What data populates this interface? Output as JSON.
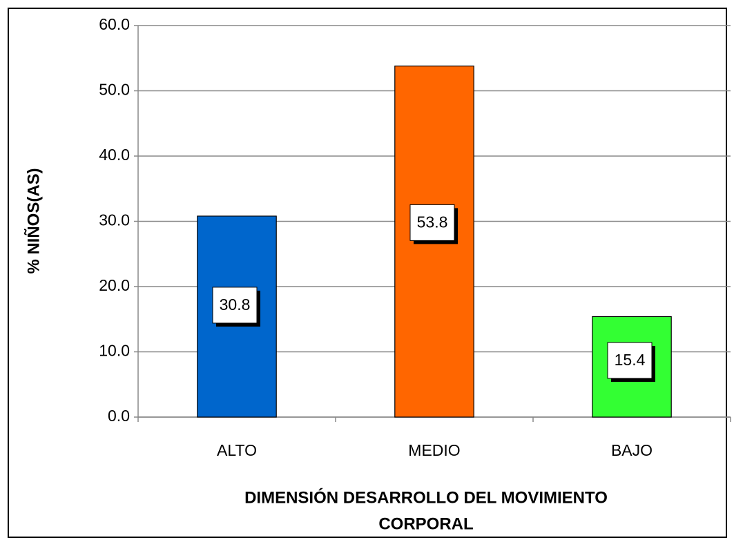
{
  "chart_data": {
    "type": "bar",
    "categories": [
      "ALTO",
      "MEDIO",
      "BAJO"
    ],
    "values": [
      30.8,
      53.8,
      15.4
    ],
    "colors": [
      "#0066cc",
      "#ff6600",
      "#33ff33"
    ],
    "ylim": [
      0,
      60
    ],
    "yticks": [
      {
        "value": 0,
        "label": "0.0"
      },
      {
        "value": 10,
        "label": "10.0"
      },
      {
        "value": 20,
        "label": "20.0"
      },
      {
        "value": 30,
        "label": "30.0"
      },
      {
        "value": 40,
        "label": "40.0"
      },
      {
        "value": 50,
        "label": "50.0"
      },
      {
        "value": 60,
        "label": "60.0"
      }
    ],
    "grid": true,
    "y_label": "% NIÑOS(AS)",
    "x_label": [
      "DIMENSIÓN DESARROLLO DEL MOVIMIENTO",
      "CORPORAL"
    ]
  }
}
